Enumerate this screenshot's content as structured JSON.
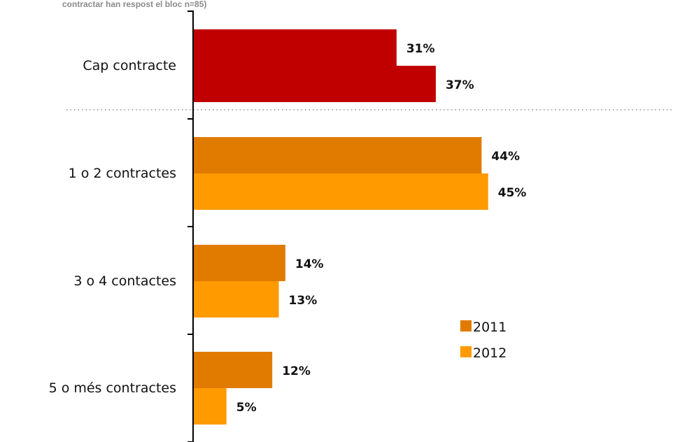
{
  "chart_data": {
    "type": "bar",
    "orientation": "horizontal",
    "title": "contractar han respost el bloc n=85)",
    "categories": [
      "Cap contracte",
      "1 o 2 contractes",
      "3 o 4 contactes",
      "5 o més contractes"
    ],
    "series": [
      {
        "name": "2011",
        "values": [
          31,
          44,
          14,
          12
        ],
        "labels": [
          "31%",
          "44%",
          "14%",
          "12%"
        ]
      },
      {
        "name": "2012",
        "values": [
          37,
          45,
          13,
          5
        ],
        "labels": [
          "37%",
          "45%",
          "13%",
          "5%"
        ]
      }
    ],
    "xlim": [
      0,
      50
    ],
    "unit": "%",
    "colors": {
      "2011": "#E07B00",
      "2012": "#FF9A00",
      "highlight_2011": "#C00000",
      "highlight_2012": "#C00000"
    },
    "highlighted_category": "Cap contracte",
    "separator_after_category": "Cap contracte",
    "legend_position": "right",
    "grid": false
  }
}
